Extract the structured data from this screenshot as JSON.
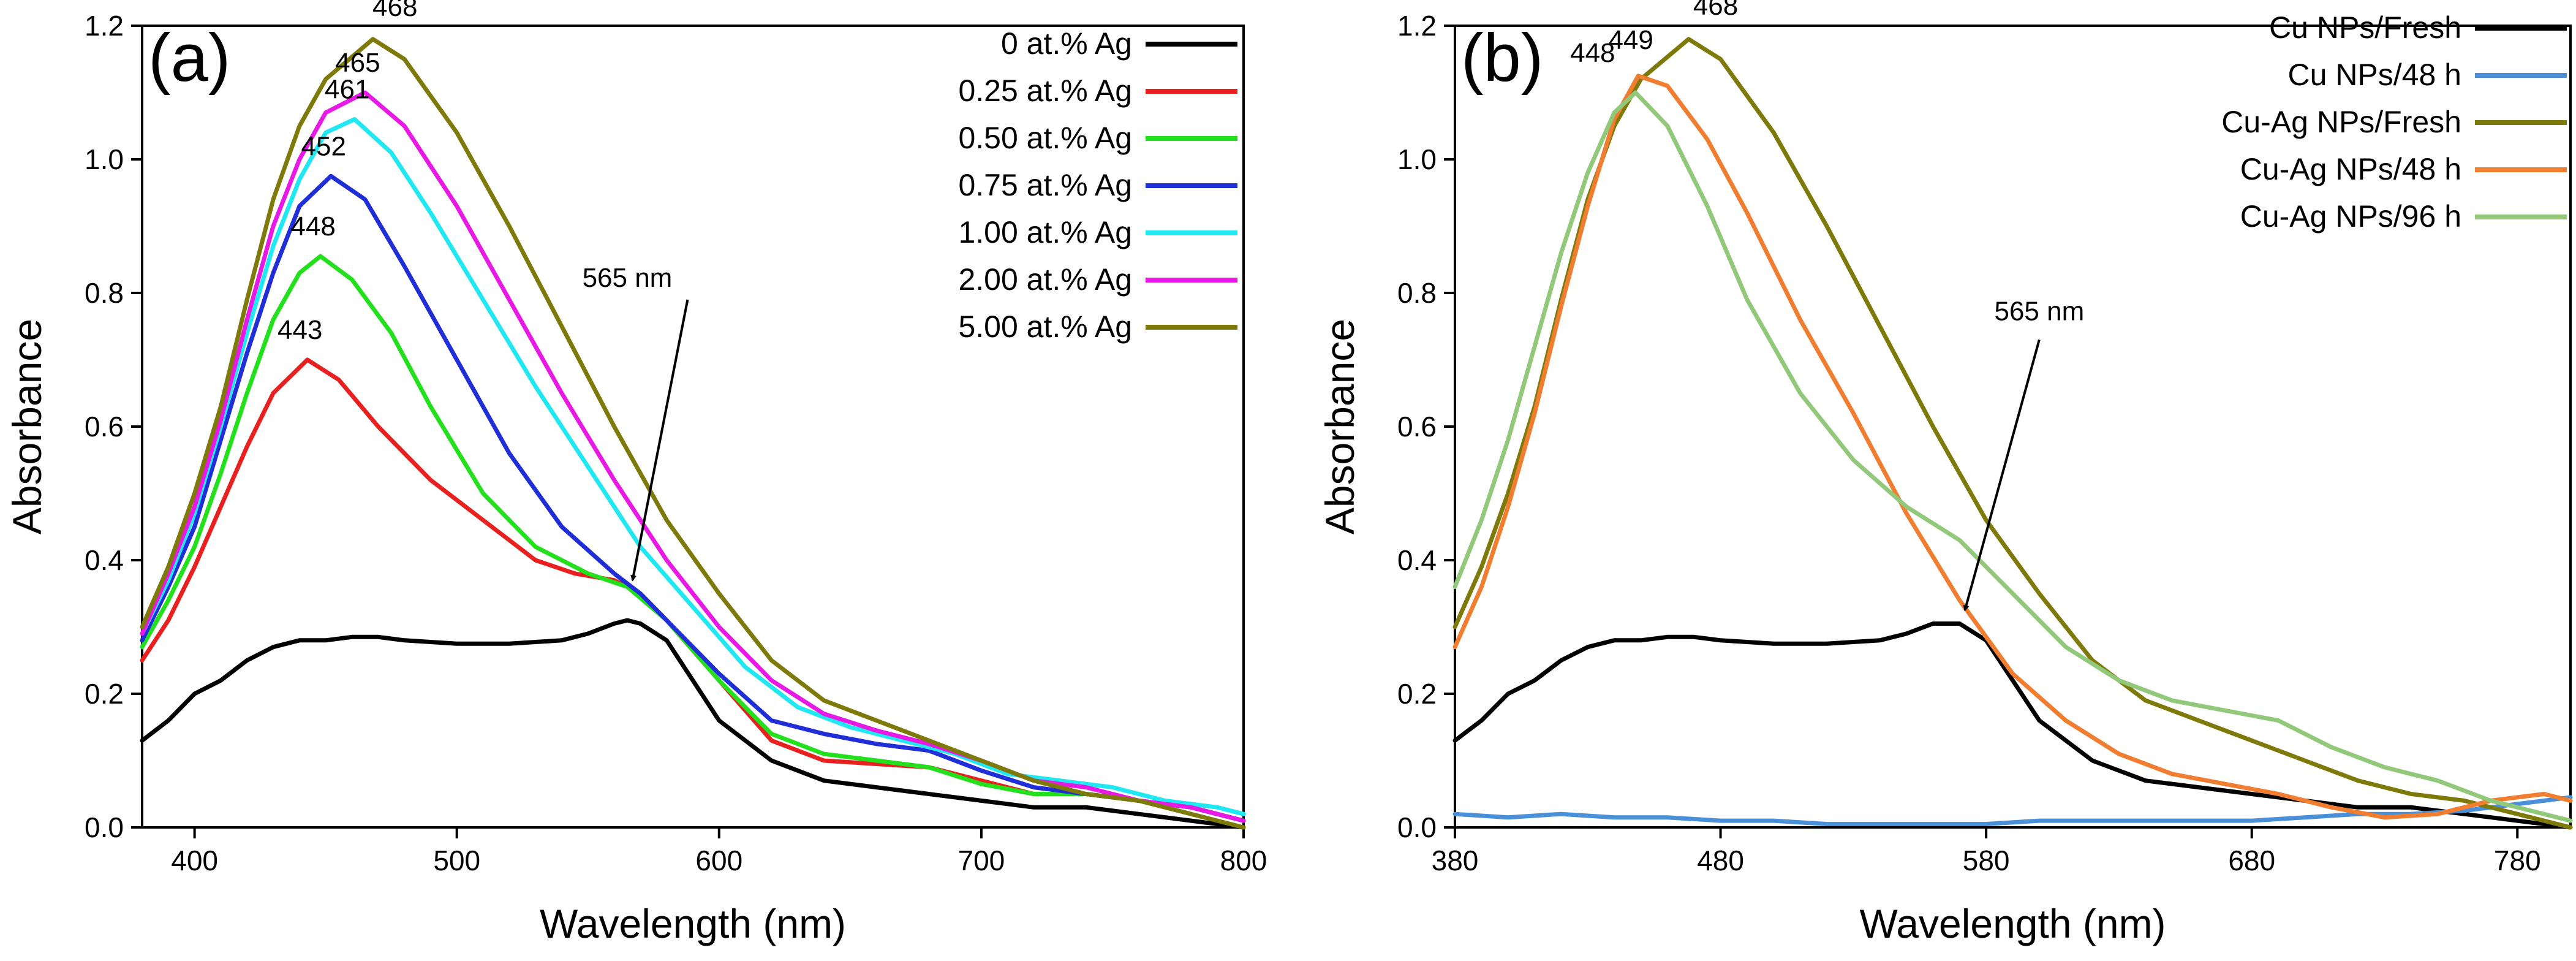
{
  "chart_data": [
    {
      "type": "line",
      "panel_label": "(a)",
      "xlabel": "Wavelength (nm)",
      "ylabel": "Absorbance",
      "xlim": [
        380,
        800
      ],
      "ylim": [
        0.0,
        1.2
      ],
      "x_ticks": [
        400,
        500,
        600,
        700,
        800
      ],
      "x_tick_labels": [
        "400",
        "500",
        "600",
        "700",
        "800"
      ],
      "y_ticks": [
        0.0,
        0.2,
        0.4,
        0.6,
        0.8,
        1.0,
        1.2
      ],
      "y_tick_labels": [
        "0.0",
        "0.2",
        "0.4",
        "0.6",
        "0.8",
        "1.0",
        "1.2"
      ],
      "legend_position": "top-right",
      "series": [
        {
          "name": "0 at.% Ag",
          "color": "#000000",
          "x": [
            380,
            390,
            400,
            410,
            420,
            430,
            440,
            450,
            460,
            470,
            480,
            500,
            520,
            540,
            550,
            560,
            565,
            570,
            580,
            590,
            600,
            620,
            640,
            660,
            680,
            700,
            720,
            740,
            760,
            780,
            800
          ],
          "y": [
            0.13,
            0.16,
            0.2,
            0.22,
            0.25,
            0.27,
            0.28,
            0.28,
            0.285,
            0.285,
            0.28,
            0.275,
            0.275,
            0.28,
            0.29,
            0.305,
            0.31,
            0.305,
            0.28,
            0.22,
            0.16,
            0.1,
            0.07,
            0.06,
            0.05,
            0.04,
            0.03,
            0.03,
            0.02,
            0.01,
            0.0
          ]
        },
        {
          "name": "0.25 at.% Ag",
          "color": "#e8201f",
          "x": [
            380,
            390,
            400,
            410,
            420,
            430,
            443,
            455,
            470,
            490,
            510,
            530,
            545,
            560,
            570,
            580,
            600,
            620,
            640,
            660,
            680,
            700,
            720,
            740,
            760,
            780,
            800
          ],
          "y": [
            0.25,
            0.31,
            0.39,
            0.48,
            0.57,
            0.65,
            0.7,
            0.67,
            0.6,
            0.52,
            0.46,
            0.4,
            0.38,
            0.37,
            0.35,
            0.31,
            0.22,
            0.13,
            0.1,
            0.095,
            0.09,
            0.07,
            0.05,
            0.05,
            0.04,
            0.03,
            0.01
          ]
        },
        {
          "name": "0.50 at.% Ag",
          "color": "#22e01c",
          "x": [
            380,
            390,
            400,
            410,
            420,
            430,
            440,
            448,
            460,
            475,
            490,
            510,
            530,
            550,
            565,
            580,
            600,
            620,
            640,
            660,
            680,
            700,
            720,
            740,
            760,
            780,
            800
          ],
          "y": [
            0.27,
            0.34,
            0.42,
            0.53,
            0.65,
            0.76,
            0.83,
            0.855,
            0.82,
            0.74,
            0.63,
            0.5,
            0.42,
            0.38,
            0.36,
            0.31,
            0.22,
            0.14,
            0.11,
            0.1,
            0.09,
            0.065,
            0.05,
            0.05,
            0.04,
            0.03,
            0.01
          ]
        },
        {
          "name": "0.75 at.% Ag",
          "color": "#1f2ed6",
          "x": [
            380,
            390,
            400,
            410,
            420,
            430,
            440,
            452,
            465,
            480,
            500,
            520,
            540,
            560,
            570,
            580,
            600,
            620,
            640,
            660,
            680,
            700,
            720,
            740,
            760,
            780,
            800
          ],
          "y": [
            0.28,
            0.36,
            0.45,
            0.58,
            0.71,
            0.83,
            0.93,
            0.975,
            0.94,
            0.84,
            0.7,
            0.56,
            0.45,
            0.38,
            0.35,
            0.31,
            0.23,
            0.16,
            0.14,
            0.125,
            0.115,
            0.085,
            0.06,
            0.05,
            0.04,
            0.03,
            0.01
          ]
        },
        {
          "name": "1.00 at.% Ag",
          "color": "#1fe8f2",
          "x": [
            380,
            390,
            400,
            410,
            420,
            430,
            440,
            450,
            461,
            475,
            490,
            510,
            530,
            550,
            570,
            590,
            610,
            630,
            650,
            670,
            690,
            710,
            730,
            750,
            770,
            790,
            800
          ],
          "y": [
            0.29,
            0.37,
            0.47,
            0.6,
            0.74,
            0.87,
            0.97,
            1.04,
            1.06,
            1.01,
            0.92,
            0.79,
            0.66,
            0.54,
            0.42,
            0.33,
            0.24,
            0.18,
            0.15,
            0.13,
            0.11,
            0.08,
            0.07,
            0.06,
            0.04,
            0.03,
            0.02
          ]
        },
        {
          "name": "2.00 at.% Ag",
          "color": "#e819e5",
          "x": [
            380,
            390,
            400,
            410,
            420,
            430,
            440,
            450,
            465,
            480,
            500,
            520,
            540,
            560,
            580,
            600,
            620,
            640,
            660,
            680,
            700,
            720,
            740,
            760,
            780,
            800
          ],
          "y": [
            0.29,
            0.38,
            0.48,
            0.61,
            0.76,
            0.9,
            1.0,
            1.07,
            1.1,
            1.05,
            0.93,
            0.79,
            0.65,
            0.52,
            0.4,
            0.3,
            0.22,
            0.17,
            0.145,
            0.125,
            0.1,
            0.07,
            0.06,
            0.04,
            0.03,
            0.01
          ]
        },
        {
          "name": "5.00 at.% Ag",
          "color": "#7e7a0a",
          "x": [
            380,
            390,
            400,
            410,
            420,
            430,
            440,
            450,
            468,
            480,
            500,
            520,
            540,
            560,
            580,
            600,
            620,
            640,
            660,
            680,
            700,
            720,
            740,
            760,
            780,
            800
          ],
          "y": [
            0.3,
            0.39,
            0.5,
            0.63,
            0.79,
            0.94,
            1.05,
            1.12,
            1.18,
            1.15,
            1.04,
            0.9,
            0.75,
            0.6,
            0.46,
            0.35,
            0.25,
            0.19,
            0.16,
            0.13,
            0.1,
            0.07,
            0.05,
            0.04,
            0.02,
            0.0
          ]
        }
      ],
      "annotations": [
        {
          "text": "443",
          "x": 443,
          "y": 0.7
        },
        {
          "text": "448",
          "x": 448,
          "y": 0.855
        },
        {
          "text": "452",
          "x": 452,
          "y": 0.975
        },
        {
          "text": "461",
          "x": 461,
          "y": 1.06
        },
        {
          "text": "465",
          "x": 465,
          "y": 1.1
        },
        {
          "text": "468",
          "x": 468,
          "y": 1.18
        }
      ],
      "arrow": {
        "text": "565 nm",
        "text_x": 565,
        "text_y": 0.8,
        "from_x": 588,
        "from_y": 0.79,
        "to_x": 567,
        "to_y": 0.37
      }
    },
    {
      "type": "line",
      "panel_label": "(b)",
      "xlabel": "Wavelength (nm)",
      "ylabel": "Absorbance",
      "xlim": [
        380,
        800
      ],
      "ylim": [
        0.0,
        1.2
      ],
      "x_ticks": [
        380,
        480,
        580,
        680,
        780
      ],
      "x_tick_labels": [
        "380",
        "480",
        "580",
        "680",
        "780"
      ],
      "y_ticks": [
        0.0,
        0.2,
        0.4,
        0.6,
        0.8,
        1.0,
        1.2
      ],
      "y_tick_labels": [
        "0.0",
        "0.2",
        "0.4",
        "0.6",
        "0.8",
        "1.0",
        "1.2"
      ],
      "legend_position": "top-right",
      "series": [
        {
          "name": "Cu NPs/Fresh",
          "color": "#000000",
          "x": [
            380,
            390,
            400,
            410,
            420,
            430,
            440,
            450,
            460,
            470,
            480,
            500,
            520,
            540,
            550,
            560,
            570,
            580,
            590,
            600,
            620,
            640,
            660,
            680,
            700,
            720,
            740,
            760,
            780,
            800
          ],
          "y": [
            0.13,
            0.16,
            0.2,
            0.22,
            0.25,
            0.27,
            0.28,
            0.28,
            0.285,
            0.285,
            0.28,
            0.275,
            0.275,
            0.28,
            0.29,
            0.305,
            0.305,
            0.28,
            0.22,
            0.16,
            0.1,
            0.07,
            0.06,
            0.05,
            0.04,
            0.03,
            0.03,
            0.02,
            0.01,
            0.0
          ]
        },
        {
          "name": "Cu NPs/48 h",
          "color": "#4a90d9",
          "x": [
            380,
            400,
            420,
            440,
            460,
            480,
            500,
            520,
            540,
            560,
            580,
            600,
            620,
            640,
            660,
            680,
            700,
            720,
            740,
            760,
            780,
            800
          ],
          "y": [
            0.02,
            0.015,
            0.02,
            0.015,
            0.015,
            0.01,
            0.01,
            0.005,
            0.005,
            0.005,
            0.005,
            0.01,
            0.01,
            0.01,
            0.01,
            0.01,
            0.015,
            0.02,
            0.02,
            0.025,
            0.035,
            0.045
          ]
        },
        {
          "name": "Cu-Ag NPs/Fresh",
          "color": "#7e7a0a",
          "x": [
            380,
            390,
            400,
            410,
            420,
            430,
            440,
            450,
            468,
            480,
            500,
            520,
            540,
            560,
            580,
            600,
            620,
            640,
            660,
            680,
            700,
            720,
            740,
            760,
            780,
            800
          ],
          "y": [
            0.3,
            0.39,
            0.5,
            0.63,
            0.79,
            0.94,
            1.05,
            1.12,
            1.18,
            1.15,
            1.04,
            0.9,
            0.75,
            0.6,
            0.46,
            0.35,
            0.25,
            0.19,
            0.16,
            0.13,
            0.1,
            0.07,
            0.05,
            0.04,
            0.02,
            0.0
          ]
        },
        {
          "name": "Cu-Ag NPs/48 h",
          "color": "#f07d30",
          "x": [
            380,
            390,
            400,
            410,
            420,
            430,
            440,
            449,
            460,
            475,
            490,
            510,
            530,
            550,
            570,
            590,
            610,
            630,
            650,
            670,
            690,
            710,
            730,
            750,
            770,
            790,
            800
          ],
          "y": [
            0.27,
            0.36,
            0.48,
            0.62,
            0.78,
            0.93,
            1.06,
            1.125,
            1.11,
            1.03,
            0.92,
            0.76,
            0.62,
            0.47,
            0.34,
            0.23,
            0.16,
            0.11,
            0.08,
            0.065,
            0.05,
            0.03,
            0.015,
            0.02,
            0.04,
            0.05,
            0.04
          ]
        },
        {
          "name": "Cu-Ag NPs/96 h",
          "color": "#92c87a",
          "x": [
            380,
            390,
            400,
            410,
            420,
            430,
            440,
            448,
            460,
            475,
            490,
            510,
            530,
            550,
            570,
            590,
            610,
            630,
            650,
            670,
            690,
            710,
            730,
            750,
            770,
            790,
            800
          ],
          "y": [
            0.36,
            0.46,
            0.58,
            0.72,
            0.86,
            0.98,
            1.07,
            1.1,
            1.05,
            0.93,
            0.79,
            0.65,
            0.55,
            0.48,
            0.43,
            0.35,
            0.27,
            0.22,
            0.19,
            0.175,
            0.16,
            0.12,
            0.09,
            0.07,
            0.04,
            0.02,
            0.01
          ]
        }
      ],
      "annotations": [
        {
          "text": "448",
          "x": 448,
          "y": 1.1
        },
        {
          "text": "449",
          "x": 449,
          "y": 1.125
        },
        {
          "text": "468",
          "x": 468,
          "y": 1.18
        }
      ],
      "arrow": {
        "text": "565 nm",
        "text_x": 600,
        "text_y": 0.75,
        "from_x": 600,
        "from_y": 0.73,
        "to_x": 572,
        "to_y": 0.325
      }
    }
  ]
}
